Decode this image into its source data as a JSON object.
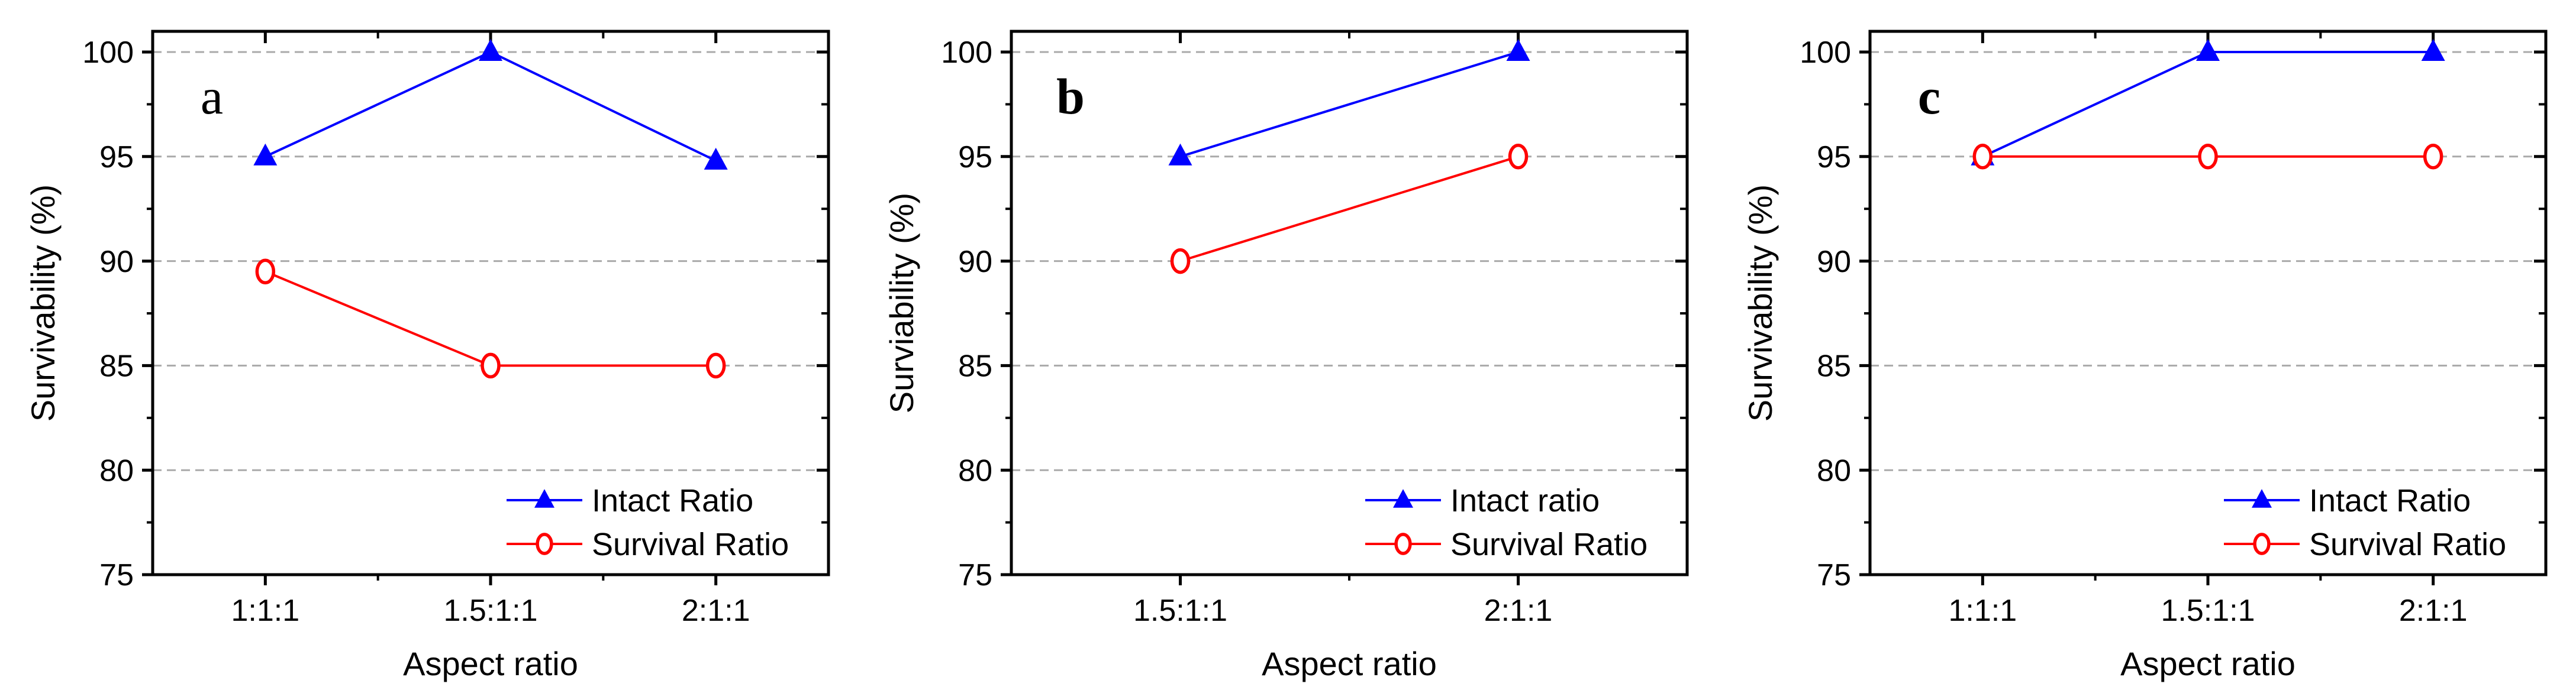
{
  "figure": {
    "background": "#ffffff",
    "axis_color": "#000000",
    "grid_color": "#aaaaaa",
    "intact_color": "#0000ff",
    "survival_color": "#ff0000"
  },
  "chart_data": [
    {
      "type": "line",
      "panel_label": "a",
      "panel_label_bold": false,
      "xlabel": "Aspect ratio",
      "ylabel": "Survivability (%)",
      "ylim": [
        75,
        100
      ],
      "yticks": [
        75,
        80,
        85,
        90,
        95,
        100
      ],
      "y_minor_ticks": [
        77.5,
        82.5,
        87.5,
        92.5,
        97.5
      ],
      "grid_values": [
        80,
        85,
        90,
        95,
        100
      ],
      "grid": "horizontal dashed",
      "legend_position": "lower right",
      "categories": [
        "1:1:1",
        "1.5:1:1",
        "2:1:1"
      ],
      "series": [
        {
          "name": "Intact Ratio",
          "color": "#0000ff",
          "marker": "triangle",
          "values": [
            95,
            100,
            94.8
          ]
        },
        {
          "name": "Survival Ratio",
          "color": "#ff0000",
          "marker": "circle-open",
          "values": [
            89.5,
            85,
            85
          ]
        }
      ]
    },
    {
      "type": "line",
      "panel_label": "b",
      "panel_label_bold": true,
      "xlabel": "Aspect ratio",
      "ylabel": "Surviability (%)",
      "ylim": [
        75,
        100
      ],
      "yticks": [
        75,
        80,
        85,
        90,
        95,
        100
      ],
      "y_minor_ticks": [
        77.5,
        82.5,
        87.5,
        92.5,
        97.5
      ],
      "grid_values": [
        80,
        85,
        90,
        95,
        100
      ],
      "grid": "horizontal dashed",
      "legend_position": "lower right",
      "categories": [
        "1.5:1:1",
        "2:1:1"
      ],
      "series": [
        {
          "name": "Intact ratio",
          "color": "#0000ff",
          "marker": "triangle",
          "values": [
            95,
            100
          ]
        },
        {
          "name": "Survival Ratio",
          "color": "#ff0000",
          "marker": "circle-open",
          "values": [
            90,
            95
          ]
        }
      ]
    },
    {
      "type": "line",
      "panel_label": "c",
      "panel_label_bold": true,
      "xlabel": "Aspect ratio",
      "ylabel": "Survivability (%)",
      "ylim": [
        75,
        100
      ],
      "yticks": [
        75,
        80,
        85,
        90,
        95,
        100
      ],
      "y_minor_ticks": [
        77.5,
        82.5,
        87.5,
        92.5,
        97.5
      ],
      "grid_values": [
        80,
        85,
        90,
        95,
        100
      ],
      "grid": "horizontal dashed",
      "legend_position": "lower right",
      "categories": [
        "1:1:1",
        "1.5:1:1",
        "2:1:1"
      ],
      "series": [
        {
          "name": "Intact Ratio",
          "color": "#0000ff",
          "marker": "triangle",
          "values": [
            95,
            100,
            100
          ]
        },
        {
          "name": "Survival Ratio",
          "color": "#ff0000",
          "marker": "circle-open",
          "values": [
            95,
            95,
            95
          ]
        }
      ]
    }
  ]
}
